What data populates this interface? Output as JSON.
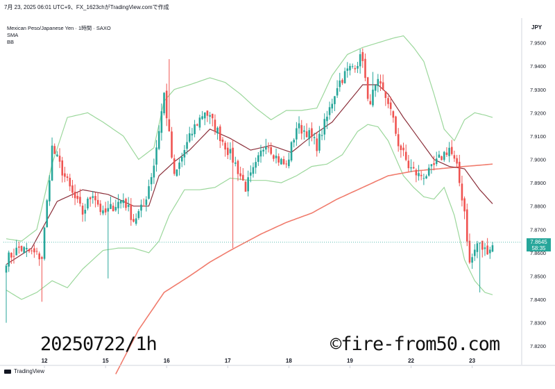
{
  "header": {
    "text": "7月 23, 2025 06:01 UTC+9、FX_1623chがTradingView.comで作成"
  },
  "symbol": {
    "text": "Mexican Peso/Japanese Yen · 1時間 · SAXO"
  },
  "indicators": [
    "SMA",
    "BB"
  ],
  "currency": "JPY",
  "price_label": {
    "price": "7.8645",
    "countdown": "58:35"
  },
  "watermark": {
    "left": "20250722/1h",
    "right": "©fire-from50.com"
  },
  "footer": {
    "logo_text": "TradingView"
  },
  "colors": {
    "up": "#26a69a",
    "down": "#ef5350",
    "sma": "#8b2f3a",
    "sma_long": "#f07b6c",
    "bb": "#9bd79b"
  },
  "chart_data": {
    "type": "candlestick",
    "title": "Mexican Peso/Japanese Yen · 1時間 · SAXO",
    "y_axis": {
      "side": "right",
      "range": [
        7.815,
        7.96
      ],
      "ticks": [
        "7.9500",
        "7.9400",
        "7.9300",
        "7.9200",
        "7.9100",
        "7.9000",
        "7.8900",
        "7.8800",
        "7.8700",
        "7.8600",
        "7.8500",
        "7.8400",
        "7.8300",
        "7.8200"
      ]
    },
    "x_axis": {
      "ticks": [
        {
          "label": "12",
          "i": 15
        },
        {
          "label": "15",
          "i": 39
        },
        {
          "label": "16",
          "i": 63
        },
        {
          "label": "17",
          "i": 87
        },
        {
          "label": "18",
          "i": 111
        },
        {
          "label": "19",
          "i": 135
        },
        {
          "label": "22",
          "i": 159
        },
        {
          "label": "23",
          "i": 183
        }
      ]
    },
    "candle_count": 192,
    "close_anchors": [
      [
        0,
        7.857
      ],
      [
        5,
        7.862
      ],
      [
        10,
        7.86
      ],
      [
        14,
        7.858
      ],
      [
        18,
        7.905
      ],
      [
        22,
        7.895
      ],
      [
        26,
        7.885
      ],
      [
        30,
        7.877
      ],
      [
        34,
        7.886
      ],
      [
        38,
        7.876
      ],
      [
        42,
        7.88
      ],
      [
        46,
        7.883
      ],
      [
        50,
        7.874
      ],
      [
        54,
        7.88
      ],
      [
        58,
        7.898
      ],
      [
        62,
        7.928
      ],
      [
        66,
        7.892
      ],
      [
        70,
        7.904
      ],
      [
        74,
        7.914
      ],
      [
        78,
        7.921
      ],
      [
        82,
        7.914
      ],
      [
        86,
        7.906
      ],
      [
        90,
        7.898
      ],
      [
        94,
        7.888
      ],
      [
        98,
        7.897
      ],
      [
        102,
        7.908
      ],
      [
        106,
        7.901
      ],
      [
        110,
        7.897
      ],
      [
        114,
        7.914
      ],
      [
        118,
        7.912
      ],
      [
        122,
        7.906
      ],
      [
        126,
        7.918
      ],
      [
        130,
        7.932
      ],
      [
        134,
        7.938
      ],
      [
        137,
        7.941
      ],
      [
        140,
        7.944
      ],
      [
        142,
        7.924
      ],
      [
        146,
        7.932
      ],
      [
        150,
        7.925
      ],
      [
        154,
        7.907
      ],
      [
        158,
        7.897
      ],
      [
        162,
        7.893
      ],
      [
        166,
        7.894
      ],
      [
        170,
        7.9
      ],
      [
        174,
        7.905
      ],
      [
        177,
        7.896
      ],
      [
        180,
        7.878
      ],
      [
        182,
        7.855
      ],
      [
        185,
        7.864
      ],
      [
        188,
        7.861
      ],
      [
        191,
        7.863
      ]
    ],
    "sma_short_anchors": [
      [
        0,
        7.855
      ],
      [
        10,
        7.862
      ],
      [
        20,
        7.882
      ],
      [
        30,
        7.887
      ],
      [
        40,
        7.885
      ],
      [
        50,
        7.88
      ],
      [
        56,
        7.88
      ],
      [
        60,
        7.893
      ],
      [
        66,
        7.899
      ],
      [
        72,
        7.904
      ],
      [
        80,
        7.913
      ],
      [
        88,
        7.909
      ],
      [
        96,
        7.904
      ],
      [
        104,
        7.906
      ],
      [
        112,
        7.903
      ],
      [
        120,
        7.91
      ],
      [
        128,
        7.916
      ],
      [
        134,
        7.924
      ],
      [
        140,
        7.932
      ],
      [
        146,
        7.932
      ],
      [
        150,
        7.928
      ],
      [
        156,
        7.918
      ],
      [
        162,
        7.909
      ],
      [
        168,
        7.9
      ],
      [
        174,
        7.897
      ],
      [
        180,
        7.896
      ],
      [
        186,
        7.887
      ],
      [
        191,
        7.881
      ]
    ],
    "sma_long_anchors": [
      [
        43,
        7.808
      ],
      [
        52,
        7.827
      ],
      [
        62,
        7.843
      ],
      [
        72,
        7.85
      ],
      [
        80,
        7.856
      ],
      [
        88,
        7.861
      ],
      [
        100,
        7.868
      ],
      [
        110,
        7.873
      ],
      [
        120,
        7.877
      ],
      [
        130,
        7.883
      ],
      [
        140,
        7.888
      ],
      [
        150,
        7.893
      ],
      [
        160,
        7.895
      ],
      [
        170,
        7.896
      ],
      [
        180,
        7.897
      ],
      [
        191,
        7.898
      ]
    ],
    "bb_upper_anchors": [
      [
        0,
        7.866
      ],
      [
        6,
        7.865
      ],
      [
        12,
        7.87
      ],
      [
        18,
        7.898
      ],
      [
        24,
        7.918
      ],
      [
        32,
        7.92
      ],
      [
        38,
        7.916
      ],
      [
        46,
        7.91
      ],
      [
        52,
        7.9
      ],
      [
        58,
        7.905
      ],
      [
        62,
        7.925
      ],
      [
        66,
        7.93
      ],
      [
        72,
        7.932
      ],
      [
        80,
        7.935
      ],
      [
        86,
        7.933
      ],
      [
        92,
        7.928
      ],
      [
        98,
        7.922
      ],
      [
        104,
        7.917
      ],
      [
        110,
        7.921
      ],
      [
        116,
        7.921
      ],
      [
        122,
        7.922
      ],
      [
        128,
        7.936
      ],
      [
        134,
        7.945
      ],
      [
        140,
        7.948
      ],
      [
        146,
        7.95
      ],
      [
        152,
        7.952
      ],
      [
        156,
        7.953
      ],
      [
        160,
        7.948
      ],
      [
        164,
        7.942
      ],
      [
        168,
        7.928
      ],
      [
        172,
        7.913
      ],
      [
        176,
        7.908
      ],
      [
        180,
        7.917
      ],
      [
        184,
        7.92
      ],
      [
        188,
        7.919
      ],
      [
        191,
        7.918
      ]
    ],
    "bb_lower_anchors": [
      [
        0,
        7.844
      ],
      [
        6,
        7.84
      ],
      [
        12,
        7.843
      ],
      [
        18,
        7.848
      ],
      [
        24,
        7.845
      ],
      [
        30,
        7.853
      ],
      [
        38,
        7.861
      ],
      [
        44,
        7.862
      ],
      [
        50,
        7.862
      ],
      [
        56,
        7.86
      ],
      [
        60,
        7.865
      ],
      [
        64,
        7.876
      ],
      [
        70,
        7.887
      ],
      [
        76,
        7.887
      ],
      [
        82,
        7.888
      ],
      [
        88,
        7.892
      ],
      [
        96,
        7.891
      ],
      [
        102,
        7.891
      ],
      [
        108,
        7.89
      ],
      [
        114,
        7.893
      ],
      [
        120,
        7.897
      ],
      [
        126,
        7.898
      ],
      [
        132,
        7.902
      ],
      [
        138,
        7.912
      ],
      [
        142,
        7.915
      ],
      [
        146,
        7.914
      ],
      [
        150,
        7.908
      ],
      [
        156,
        7.893
      ],
      [
        160,
        7.888
      ],
      [
        164,
        7.884
      ],
      [
        168,
        7.883
      ],
      [
        172,
        7.888
      ],
      [
        176,
        7.876
      ],
      [
        180,
        7.857
      ],
      [
        184,
        7.848
      ],
      [
        188,
        7.843
      ],
      [
        191,
        7.842
      ]
    ],
    "last_price": 7.8645
  }
}
